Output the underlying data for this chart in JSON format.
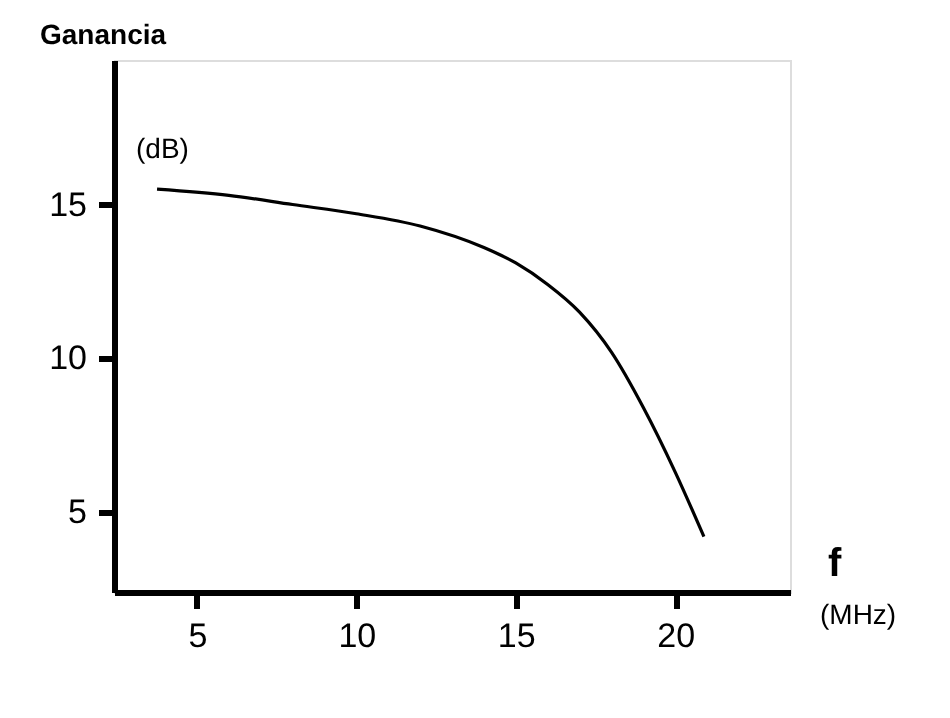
{
  "chart_data": {
    "type": "line",
    "ylabel": "Ganancia",
    "xlabel": "f",
    "annotations": [
      "(dB)",
      "(MHz)"
    ],
    "x": [
      3.75,
      6,
      8,
      10,
      12,
      14,
      15,
      16,
      17,
      18,
      19,
      20,
      20.9
    ],
    "series": [
      {
        "color": "#000000",
        "values": [
          15.5,
          15.3,
          15.0,
          14.7,
          14.3,
          13.6,
          13.1,
          12.4,
          11.5,
          10.2,
          8.4,
          6.3,
          4.2
        ]
      }
    ],
    "xlim": [
      2.4,
      23.6
    ],
    "ylim": [
      2.4,
      19.7
    ],
    "xticks": [
      5,
      10,
      15,
      20
    ],
    "yticks": [
      5,
      10,
      15
    ],
    "grid": false,
    "marker": "none",
    "line_style": "solid"
  }
}
